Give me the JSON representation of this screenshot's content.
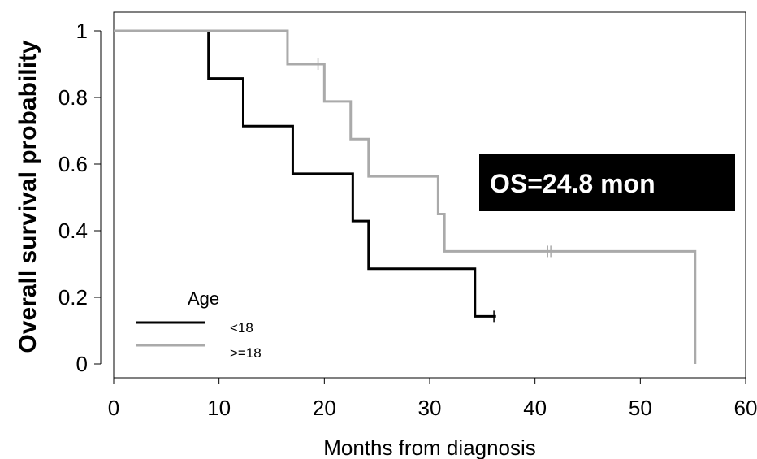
{
  "chart_data": {
    "type": "line",
    "subtype": "kaplan-meier step",
    "xlabel": "Months from diagnosis",
    "ylabel": "Overall survival probability",
    "xlim": [
      0,
      60
    ],
    "ylim": [
      0,
      1
    ],
    "xticks": [
      0,
      10,
      20,
      30,
      40,
      50,
      60
    ],
    "yticks": [
      0,
      0.2,
      0.4,
      0.6,
      0.8,
      1
    ],
    "ytick_labels": [
      "0",
      "0.2",
      "0.4",
      "0.6",
      "0.8",
      "1"
    ],
    "grid": false,
    "legend": {
      "title": "Age",
      "placement": "bottom-left"
    },
    "annotation": {
      "text": "OS=24.8 mon",
      "style": "white bold text on black box"
    },
    "series": [
      {
        "name": "<18",
        "color": "#000000",
        "steps": [
          [
            0,
            1.0
          ],
          [
            9,
            0.857
          ],
          [
            12.3,
            0.714
          ],
          [
            17,
            0.571
          ],
          [
            22.7,
            0.429
          ],
          [
            24.2,
            0.286
          ],
          [
            34.3,
            0.143
          ],
          [
            36.3,
            0.143
          ]
        ],
        "censored": [
          36.1
        ]
      },
      {
        "name": ">=18",
        "color": "#aaaaaa",
        "steps": [
          [
            0,
            1.0
          ],
          [
            16.5,
            0.9
          ],
          [
            20,
            0.788
          ],
          [
            22.5,
            0.675
          ],
          [
            24.2,
            0.563
          ],
          [
            30.8,
            0.45
          ],
          [
            31.4,
            0.338
          ],
          [
            55.2,
            0.338
          ],
          [
            55.2,
            0.0
          ]
        ],
        "censored": [
          19.4,
          41.2,
          41.5
        ]
      }
    ]
  }
}
